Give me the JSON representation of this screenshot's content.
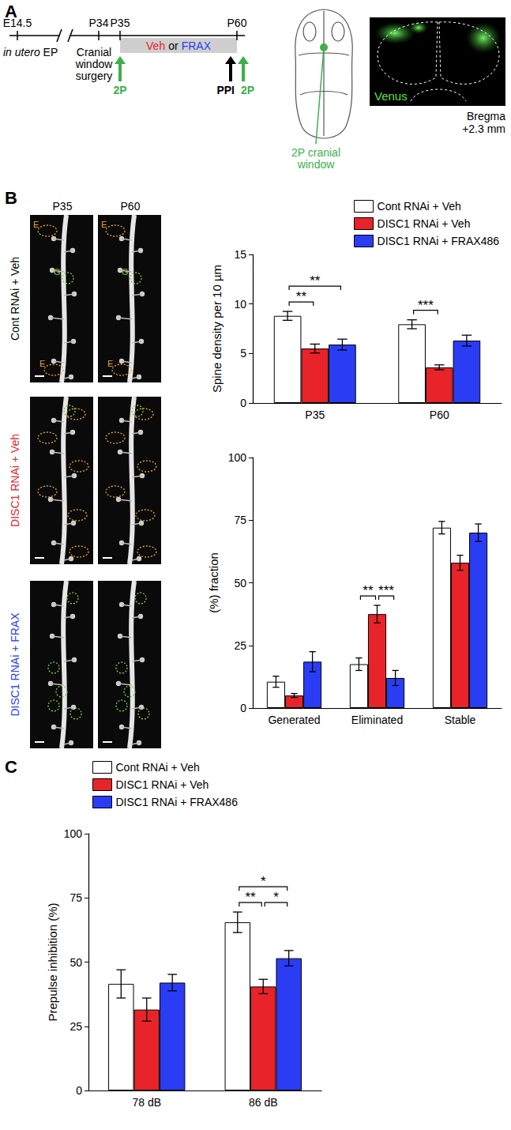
{
  "panel_labels": [
    "A",
    "B",
    "C"
  ],
  "panel_a": {
    "timeline_ticks": [
      "E14.5",
      "P34",
      "P35",
      "P60"
    ],
    "procedure": "in utero EP",
    "surgery": [
      "Cranial",
      "window",
      "surgery"
    ],
    "treatment": [
      {
        "text": "Veh",
        "color": "#e8232a"
      },
      {
        "text": "or",
        "color": "#000000"
      },
      {
        "text": "FRAX",
        "color": "#2a3df5"
      }
    ],
    "arrows": [
      {
        "label": "2P",
        "color": "#3db04a",
        "at": "P35"
      },
      {
        "label": "PPI",
        "color": "#000000",
        "at": "P60"
      },
      {
        "label": "2P",
        "color": "#3db04a",
        "at": "P60"
      }
    ],
    "window_label": [
      "2P cranial",
      "window"
    ],
    "image_label": "Venus",
    "image_caption": [
      "Bregma",
      "+2.3 mm"
    ]
  },
  "panel_b_images": {
    "columns": [
      "P35",
      "P60"
    ],
    "rows": [
      {
        "label": "Cont RNAi + Veh",
        "color": "#000000",
        "markers": [
          "E",
          "G",
          "E"
        ]
      },
      {
        "label": "DISC1 RNAi + Veh",
        "color": "#e8232a",
        "markers": []
      },
      {
        "label": "DISC1 RNAi + FRAX",
        "color": "#2a3df5",
        "markers": []
      }
    ]
  },
  "chart_data": [
    {
      "type": "bar",
      "categories": [
        "P35",
        "P60"
      ],
      "y_label": "Spine density per 10 µm",
      "ylim": [
        0,
        15
      ],
      "yticks": [
        0,
        5,
        10,
        15
      ],
      "legend": "upper right",
      "series": [
        {
          "name": "Cont RNAi + Veh",
          "color": "#ffffff",
          "values": [
            8.8,
            7.95
          ],
          "errors": [
            0.45,
            0.45
          ]
        },
        {
          "name": "DISC1 RNAi + Veh",
          "color": "#e8232a",
          "values": [
            5.5,
            3.6
          ],
          "errors": [
            0.45,
            0.25
          ]
        },
        {
          "name": "DISC1 RNAi + FRAX486",
          "color": "#2a3df5",
          "values": [
            5.9,
            6.3
          ],
          "errors": [
            0.55,
            0.55
          ]
        }
      ],
      "significance": [
        {
          "category": "P35",
          "pair": [
            0,
            1
          ],
          "label": "**"
        },
        {
          "category": "P35",
          "pair": [
            0,
            2
          ],
          "label": "**"
        },
        {
          "category": "P60",
          "pair": [
            0,
            1
          ],
          "label": "***"
        }
      ]
    },
    {
      "type": "bar",
      "categories": [
        "Generated",
        "Eliminated",
        "Stable"
      ],
      "y_label": "(%) fraction",
      "ylim": [
        0,
        100
      ],
      "yticks": [
        0,
        25,
        50,
        75,
        100
      ],
      "series": [
        {
          "color": "#ffffff",
          "values": [
            10.5,
            17.5,
            72
          ],
          "errors": [
            2.2,
            2.5,
            2.5
          ]
        },
        {
          "color": "#e8232a",
          "values": [
            5,
            37.5,
            58
          ],
          "errors": [
            0.8,
            3.5,
            3
          ]
        },
        {
          "color": "#2a3df5",
          "values": [
            18.5,
            12,
            70
          ],
          "errors": [
            4,
            3,
            3.5
          ]
        }
      ],
      "significance": [
        {
          "category": "Eliminated",
          "pair": [
            0,
            1
          ],
          "label": "**"
        },
        {
          "category": "Eliminated",
          "pair": [
            1,
            2
          ],
          "label": "***"
        }
      ]
    },
    {
      "type": "bar",
      "categories": [
        "78 dB",
        "86 dB"
      ],
      "y_label": "Prepulse inhibition (%)",
      "ylim": [
        0,
        100
      ],
      "yticks": [
        0,
        25,
        50,
        75,
        100
      ],
      "legend": "upper left",
      "series": [
        {
          "name": "Cont RNAi + Veh",
          "color": "#ffffff",
          "values": [
            41.5,
            65.5
          ],
          "errors": [
            5.5,
            4
          ]
        },
        {
          "name": "DISC1 RNAi + Veh",
          "color": "#e8232a",
          "values": [
            31.5,
            40.5
          ],
          "errors": [
            4.5,
            2.8
          ]
        },
        {
          "name": "DISC1 RNAi + FRAX486",
          "color": "#2a3df5",
          "values": [
            42,
            51.5
          ],
          "errors": [
            3.2,
            3
          ]
        }
      ],
      "significance": [
        {
          "category": "86 dB",
          "pair": [
            0,
            2
          ],
          "label": "*"
        },
        {
          "category": "86 dB",
          "pair": [
            0,
            1
          ],
          "label": "**"
        },
        {
          "category": "86 dB",
          "pair": [
            1,
            2
          ],
          "label": "*"
        }
      ]
    }
  ]
}
